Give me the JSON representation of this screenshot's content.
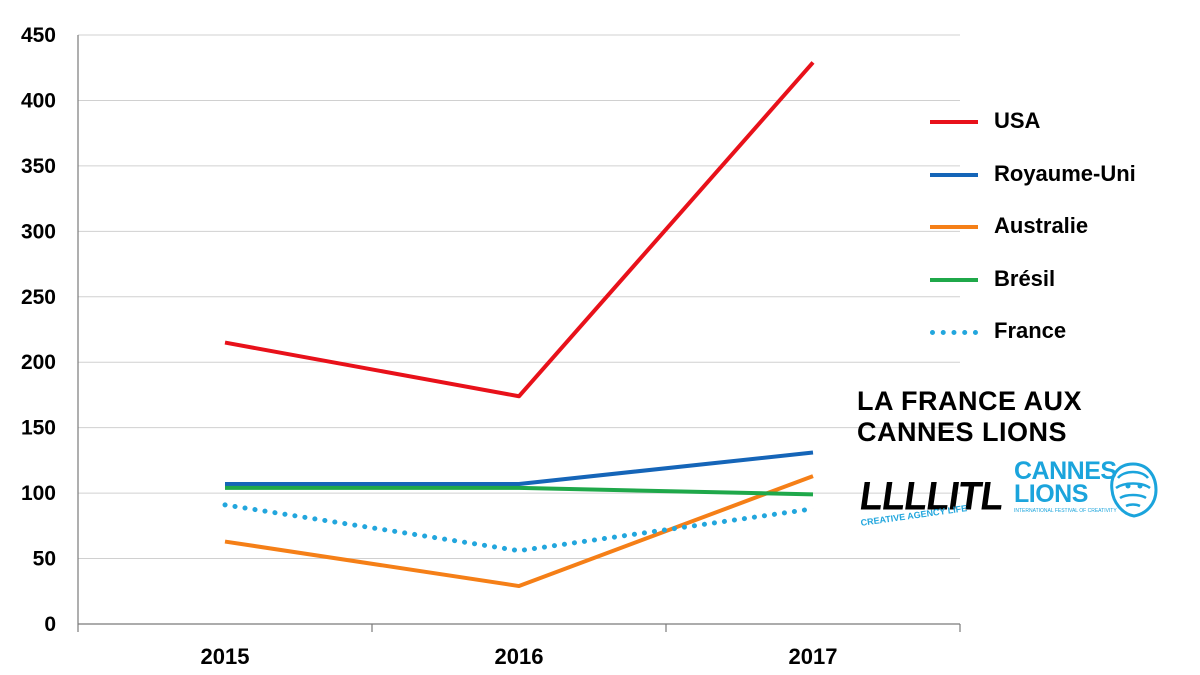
{
  "chart_data": {
    "type": "line",
    "title": "",
    "xlabel": "",
    "ylabel": "",
    "categories": [
      "2015",
      "2016",
      "2017"
    ],
    "ylim": [
      0,
      450
    ],
    "yticks": [
      "0",
      "50",
      "100",
      "150",
      "200",
      "250",
      "300",
      "350",
      "400",
      "450"
    ],
    "grid": true,
    "legend_position": "right",
    "series": [
      {
        "name": "USA",
        "values": [
          215,
          174,
          429
        ],
        "color": "#e8111a",
        "style": "solid"
      },
      {
        "name": "Royaume-Uni",
        "values": [
          107,
          107,
          131
        ],
        "color": "#1565b8",
        "style": "solid"
      },
      {
        "name": "Australie",
        "values": [
          63,
          29,
          113
        ],
        "color": "#f57f17",
        "style": "solid"
      },
      {
        "name": "Brésil",
        "values": [
          104,
          104,
          99
        ],
        "color": "#1fa84a",
        "style": "solid"
      },
      {
        "name": "France",
        "values": [
          91,
          56,
          88
        ],
        "color": "#22a6dd",
        "style": "dotted"
      }
    ]
  },
  "headline": {
    "line1": "LA FRANCE AUX",
    "line2": "CANNES LIONS"
  },
  "logos": {
    "lllitl": {
      "text": "LLLLITL",
      "tagline": "CREATIVE AGENCY LIFE"
    },
    "cannes_lions": {
      "line1": "CANNES",
      "line2": "LIONS",
      "tagline": "INTERNATIONAL FESTIVAL OF CREATIVITY",
      "icon": "lion-head-icon"
    }
  }
}
